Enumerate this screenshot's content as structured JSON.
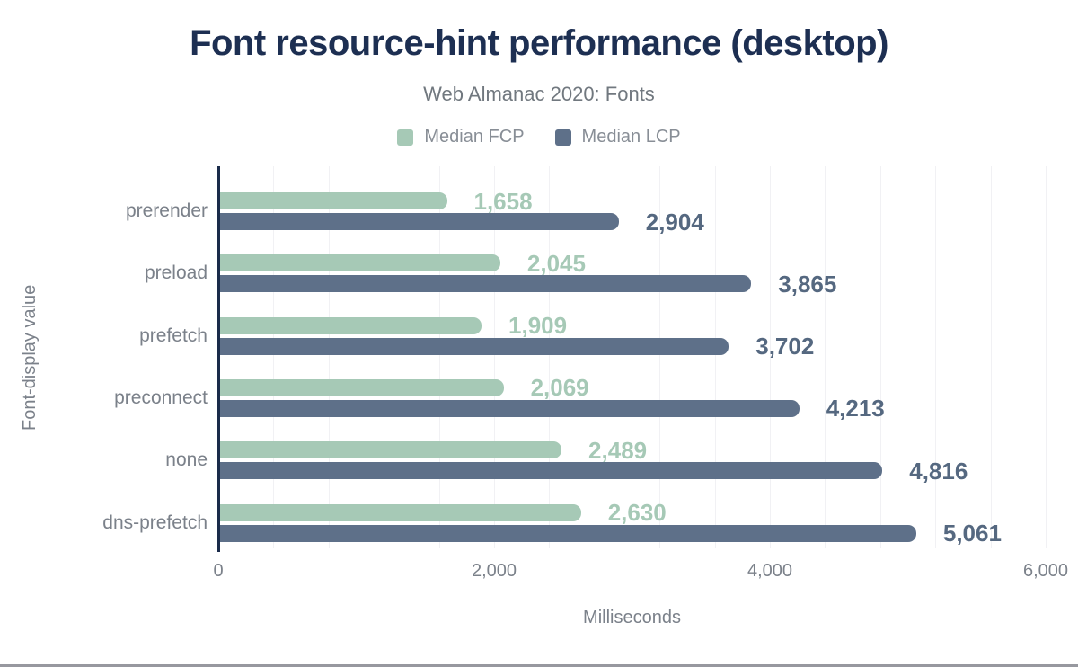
{
  "header": {
    "title": "Font resource-hint performance (desktop)",
    "subtitle": "Web Almanac 2020: Fonts"
  },
  "legend": [
    {
      "label": "Median FCP",
      "color": "#a6c9b6"
    },
    {
      "label": "Median LCP",
      "color": "#5e7089"
    }
  ],
  "colors": {
    "title": "#1d2f52",
    "axis_line": "#1a2b4a",
    "gridline": "#f1f1f4",
    "muted_text": "#7b818a",
    "bottom_edge": "#97989f"
  },
  "chart_data": {
    "type": "bar",
    "orientation": "horizontal",
    "title": "Font resource-hint performance (desktop)",
    "subtitle": "Web Almanac 2020: Fonts",
    "xlabel": "Milliseconds",
    "ylabel": "Font-display value",
    "xlim": [
      0,
      6000
    ],
    "grid": true,
    "gridline_step": 400,
    "legend_position": "top",
    "categories": [
      "prerender",
      "preload",
      "prefetch",
      "preconnect",
      "none",
      "dns-prefetch"
    ],
    "series": [
      {
        "name": "Median FCP",
        "color": "#a6c9b6",
        "label_color": "#a6c9b6",
        "values": [
          1658,
          2045,
          1909,
          2069,
          2489,
          2630
        ],
        "labels": [
          "1,658",
          "2,045",
          "1,909",
          "2,069",
          "2,489",
          "2,630"
        ]
      },
      {
        "name": "Median LCP",
        "color": "#5e7089",
        "label_color": "#556880",
        "values": [
          2904,
          3865,
          3702,
          4213,
          4816,
          5061
        ],
        "labels": [
          "2,904",
          "3,865",
          "3,702",
          "4,213",
          "4,816",
          "5,061"
        ]
      }
    ],
    "x_ticks": [
      {
        "value": 0,
        "label": "0"
      },
      {
        "value": 2000,
        "label": "2,000"
      },
      {
        "value": 4000,
        "label": "4,000"
      },
      {
        "value": 6000,
        "label": "6,000"
      }
    ]
  }
}
